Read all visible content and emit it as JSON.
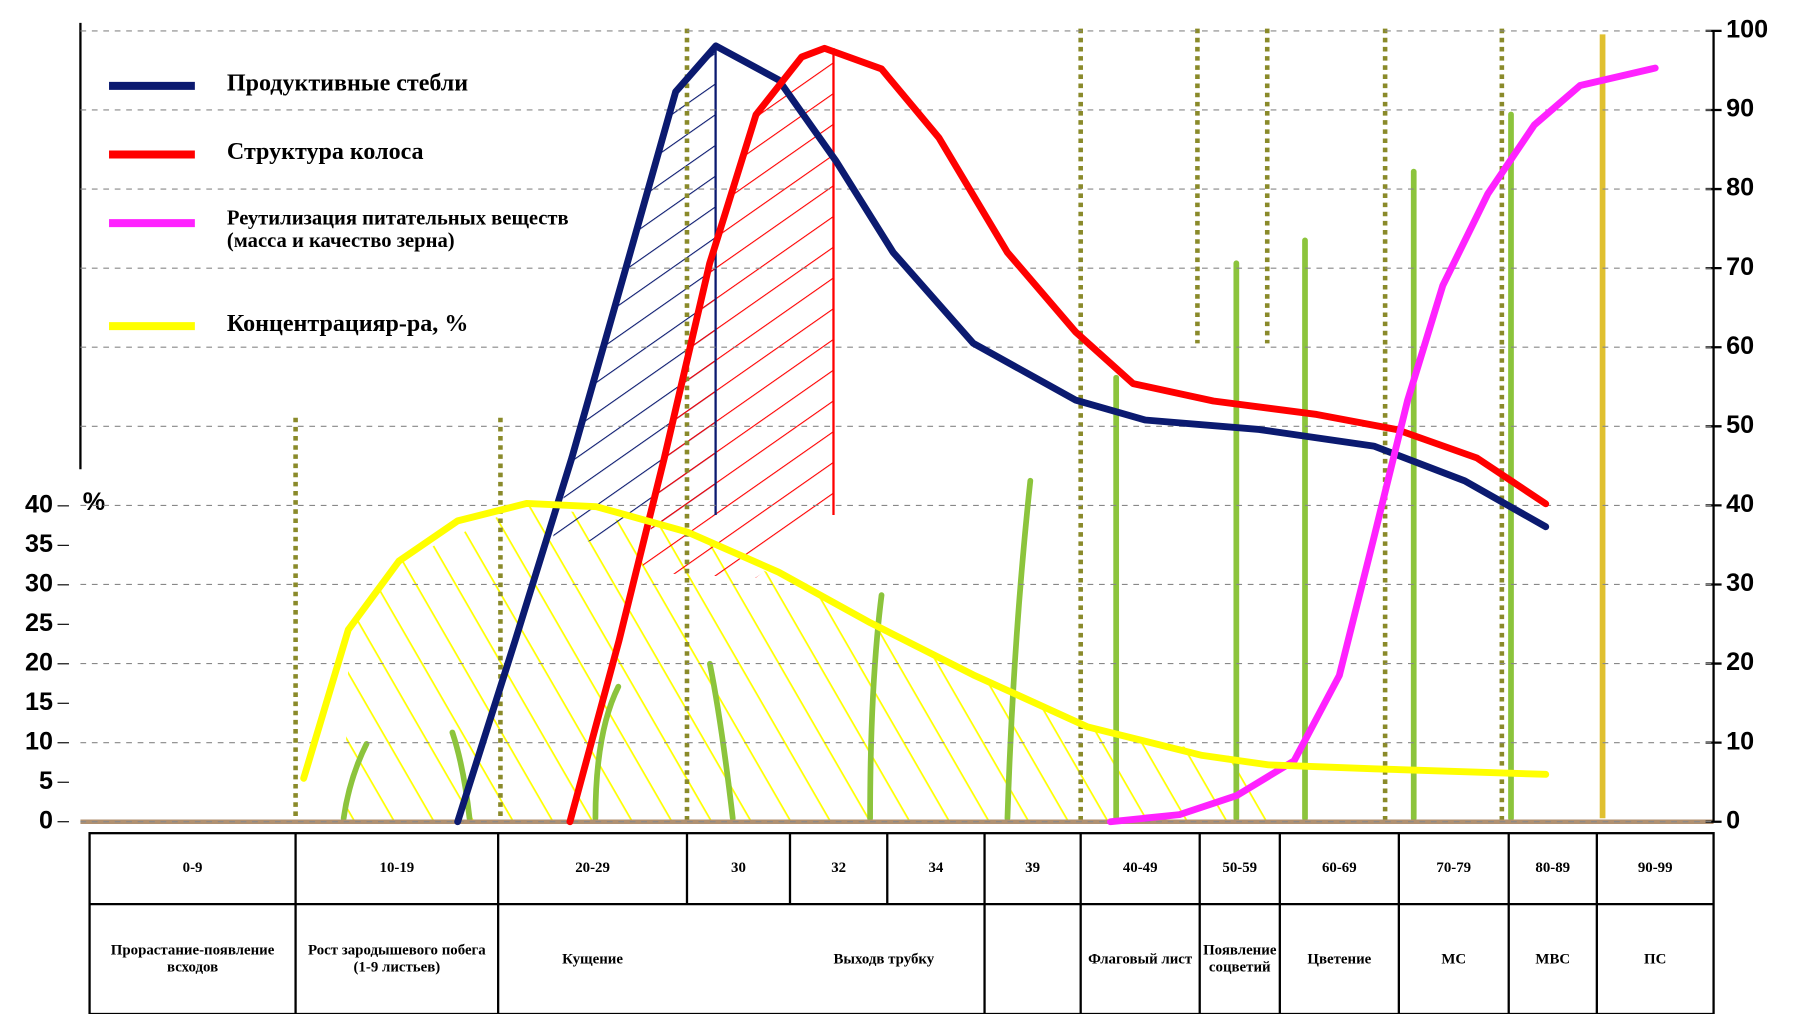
{
  "chart_data": {
    "type": "line",
    "ylabel": "%",
    "xlim": [
      0,
      100
    ],
    "ylim": [
      0,
      40
    ],
    "yticks": [
      0,
      5,
      10,
      15,
      20,
      25,
      30,
      35,
      40
    ],
    "y2lim": [
      0,
      100
    ],
    "y2ticks": [
      0,
      10,
      20,
      30,
      40,
      50,
      60,
      70,
      80,
      90,
      100
    ],
    "grid": true,
    "legend": "top-left",
    "series": [
      {
        "name": "Продуктивные стебли",
        "color": "#0b1a70",
        "axis": "y2",
        "x": [
          18.0,
          20.9,
          23.9,
          27.0,
          29.4,
          30.28,
          30.89,
          31.94,
          33.18,
          35.65,
          39.8,
          45.4,
          57.4,
          67.9,
          76.0,
          84.2
        ],
        "values": [
          0,
          22.9,
          46,
          72,
          92.3,
          98.1,
          93.8,
          83.6,
          72,
          60.5,
          53.3,
          50.8,
          49.6,
          47.5,
          43.1,
          37.3
        ]
      },
      {
        "name": "Структура колоса",
        "color": "#ff0000",
        "axis": "y2",
        "x": [
          23.8,
          26.4,
          28.8,
          30.22,
          30.67,
          31.24,
          31.71,
          32.88,
          34.59,
          36.95,
          39.8,
          44.4,
          51.7,
          63.1,
          69.8,
          77.1,
          84.2
        ],
        "values": [
          0,
          22.9,
          46,
          70.6,
          89.4,
          96.7,
          97.8,
          95.2,
          86.5,
          72,
          61.9,
          55.4,
          53.2,
          51.5,
          49.6,
          46,
          40.2
        ]
      },
      {
        "name": "Реутилизация питательных веществ (масса и качество зерна)",
        "color": "#ff22ff",
        "axis": "y2",
        "x": [
          42.5,
          48.3,
          54.6,
          61.2,
          65.0,
          67.9,
          70.8,
          74.0,
          78.1,
          82.9,
          88.1,
          95
        ],
        "values": [
          0,
          0.9,
          3.3,
          7.7,
          18.5,
          35.9,
          53.3,
          67.8,
          79.4,
          88.1,
          93.1,
          95.3
        ]
      },
      {
        "name": "Концентрацияр-ра, %",
        "color": "#ffff00",
        "axis": "y",
        "x": [
          10.4,
          12.6,
          15.1,
          18.0,
          21.5,
          25.2,
          30,
          30.89,
          32.65,
          35.65,
          40.6,
          50.3,
          58.6,
          67.9,
          84.2
        ],
        "values": [
          5.5,
          24.3,
          33,
          38.1,
          40.3,
          39.9,
          36.7,
          31.6,
          25.2,
          18.6,
          12.0,
          8.4,
          7.2,
          6.7,
          6.0
        ]
      }
    ]
  },
  "table": {
    "codes": [
      "0-9",
      "10-19",
      "20-29",
      "30",
      "32",
      "34",
      "39",
      "40-49",
      "50-59",
      "60-69",
      "70-79",
      "80-89",
      "90-99"
    ],
    "stages": [
      "Прорастание-появление всходов",
      "Рост зародышевого побега (1-9 листьев)",
      "Кущение",
      "Выходв трубку",
      "Флаговый лист",
      "Появление соцветий",
      "Цветение",
      "МС",
      "МВС",
      "ПС"
    ]
  }
}
